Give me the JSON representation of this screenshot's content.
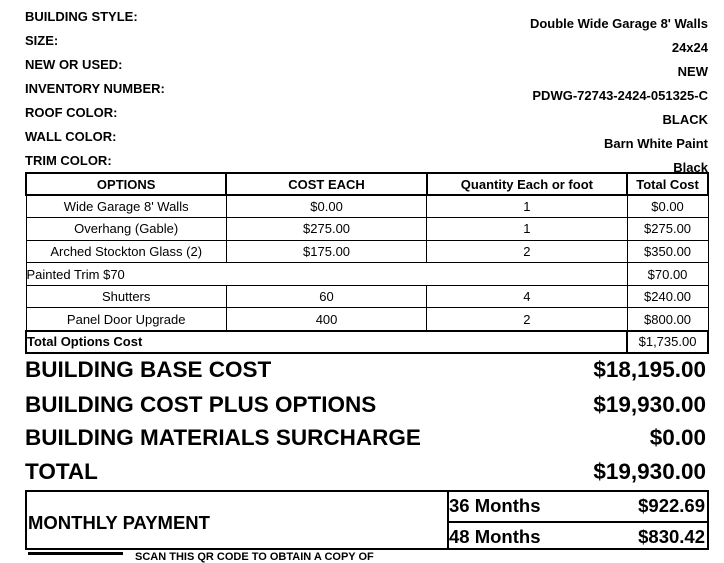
{
  "info": [
    {
      "label": "BUILDING STYLE:",
      "value": "Double Wide Garage 8' Walls"
    },
    {
      "label": "SIZE:",
      "value": "24x24"
    },
    {
      "label": "NEW OR USED:",
      "value": "NEW"
    },
    {
      "label": "INVENTORY NUMBER:",
      "value": "PDWG-72743-2424-051325-C"
    },
    {
      "label": "ROOF COLOR:",
      "value": "BLACK"
    },
    {
      "label": "WALL COLOR:",
      "value": "Barn White Paint"
    },
    {
      "label": "TRIM COLOR:",
      "value": "Black"
    }
  ],
  "options_table": {
    "headers": [
      "OPTIONS",
      "COST EACH",
      "Quantity Each or foot",
      "Total Cost"
    ],
    "rows": [
      [
        "Wide Garage 8' Walls",
        "$0.00",
        "1",
        "$0.00"
      ],
      [
        "Overhang (Gable)",
        "$275.00",
        "1",
        "$275.00"
      ],
      [
        "Arched Stockton Glass (2)",
        "$175.00",
        "2",
        "$350.00"
      ],
      [
        "Painted Trim $70",
        "$70.00"
      ],
      [
        "Shutters",
        "60",
        "4",
        "$240.00"
      ],
      [
        "Panel Door Upgrade",
        "400",
        "2",
        "$800.00"
      ]
    ],
    "total_label": "Total Options Cost",
    "total_value": "$1,735.00"
  },
  "summary": [
    {
      "label": "BUILDING BASE COST",
      "value": "$18,195.00"
    },
    {
      "label": "BUILDING COST PLUS OPTIONS",
      "value": "$19,930.00"
    },
    {
      "label": "BUILDING MATERIALS SURCHARGE",
      "value": "$0.00"
    },
    {
      "label": "TOTAL",
      "value": "$19,930.00"
    }
  ],
  "monthly": {
    "label": "MONTHLY PAYMENT",
    "plans": [
      {
        "term": "36 Months",
        "amount": "$922.69"
      },
      {
        "term": "48 Months",
        "amount": "$830.42"
      }
    ]
  },
  "footer_text": "SCAN THIS QR CODE TO OBTAIN A COPY OF"
}
